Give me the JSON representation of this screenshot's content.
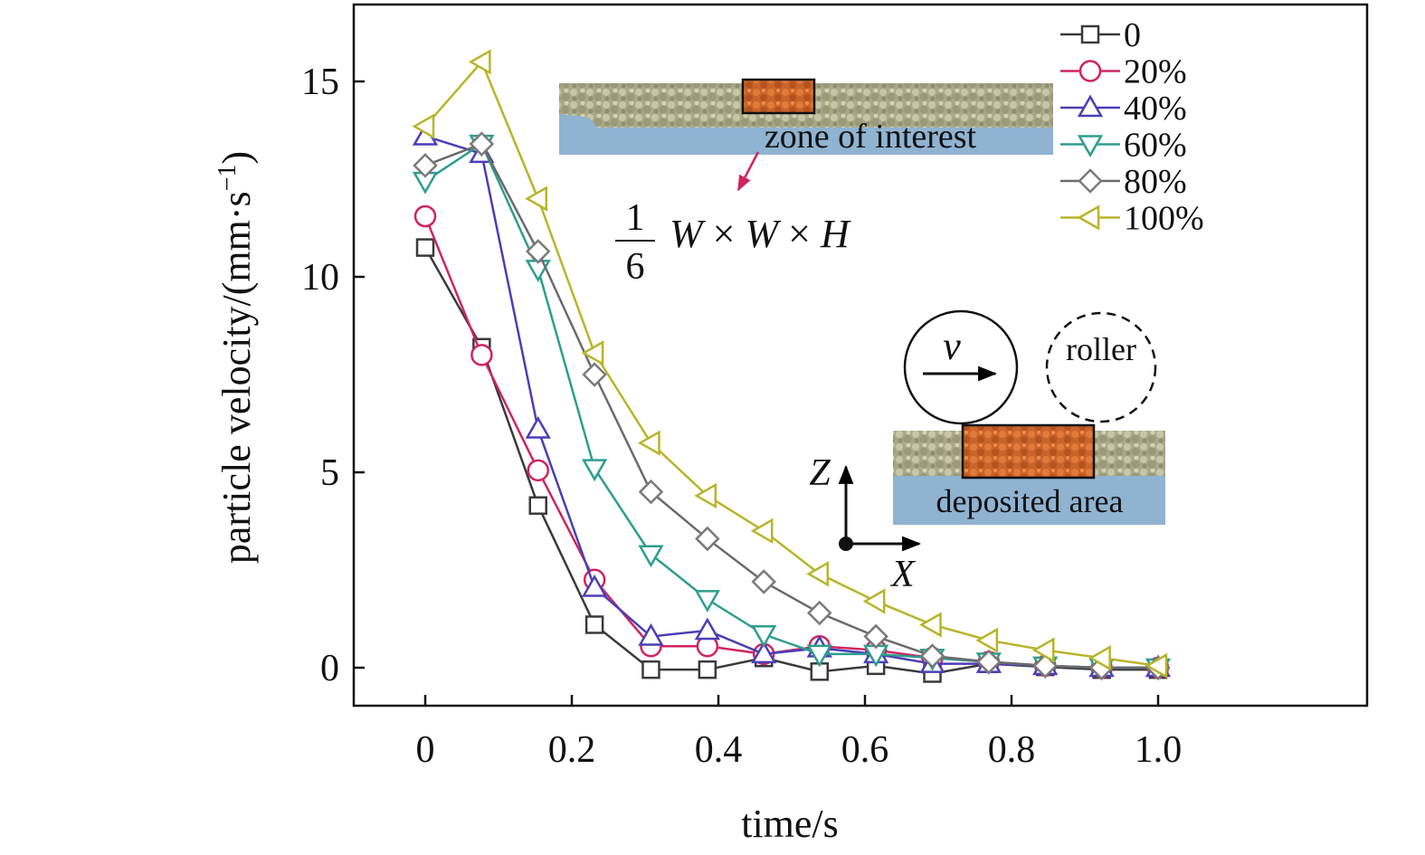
{
  "chart_data": {
    "type": "line",
    "xlabel": "time/s",
    "ylabel_main": "particle velocity/(mm·s",
    "ylabel_sup": "−1",
    "ylabel_close": ")",
    "xlim": [
      -0.1,
      1.05
    ],
    "ylim": [
      -1.0,
      16.8
    ],
    "x_ticks": [
      0,
      0.2,
      0.4,
      0.6,
      0.8,
      1.0
    ],
    "x_tick_labels": [
      "0",
      "0.2",
      "0.4",
      "0.6",
      "0.8",
      "1.0"
    ],
    "y_ticks": [
      0,
      5,
      10,
      15
    ],
    "y_tick_labels": [
      "0",
      "5",
      "10",
      "15"
    ],
    "grid": false,
    "legend_position": "top-right",
    "x": [
      0,
      0.077,
      0.154,
      0.231,
      0.308,
      0.385,
      0.462,
      0.538,
      0.615,
      0.692,
      0.769,
      0.846,
      0.923,
      1.0
    ],
    "series": [
      {
        "name": "0",
        "color": "#3a3a3a",
        "marker": "square",
        "values": [
          10.75,
          8.2,
          4.15,
          1.1,
          -0.05,
          -0.05,
          0.25,
          -0.1,
          0.05,
          -0.15,
          0.1,
          0.02,
          -0.05,
          -0.05
        ]
      },
      {
        "name": "20%",
        "color": "#d0245e",
        "marker": "circle",
        "values": [
          11.55,
          8.0,
          5.05,
          2.25,
          0.55,
          0.55,
          0.35,
          0.55,
          0.45,
          0.25,
          0.15,
          0.05,
          0.0,
          0.0
        ]
      },
      {
        "name": "40%",
        "color": "#4a3fb6",
        "marker": "triangle-up",
        "values": [
          13.6,
          13.15,
          6.1,
          2.05,
          0.8,
          0.95,
          0.35,
          0.5,
          0.35,
          0.1,
          0.1,
          0.05,
          0.0,
          0.0
        ]
      },
      {
        "name": "60%",
        "color": "#2e9e8f",
        "marker": "triangle-down",
        "values": [
          12.45,
          13.4,
          10.2,
          5.1,
          2.9,
          1.75,
          0.85,
          0.35,
          0.35,
          0.25,
          0.15,
          0.05,
          0.0,
          0.0
        ]
      },
      {
        "name": "80%",
        "color": "#7a7a7a",
        "marker": "diamond",
        "line_color": "#6b6b6b",
        "values": [
          12.85,
          13.4,
          10.65,
          7.5,
          4.5,
          3.3,
          2.2,
          1.4,
          0.8,
          0.3,
          0.15,
          0.05,
          0.0,
          0.0
        ]
      },
      {
        "name": "100%",
        "color": "#b9b42a",
        "marker": "triangle-left",
        "values": [
          13.85,
          15.5,
          12.0,
          8.05,
          5.75,
          4.4,
          3.5,
          2.4,
          1.7,
          1.1,
          0.7,
          0.45,
          0.25,
          0.05
        ]
      }
    ],
    "annotations": {
      "zone": "zone of interest",
      "fraction_num": "1",
      "fraction_den": "6",
      "formula_terms": [
        "W",
        " × ",
        "W",
        " × ",
        "H"
      ],
      "velocity_symbol": "v",
      "roller": "roller",
      "deposited": "deposited area",
      "axis_z": "Z",
      "axis_x": "X"
    }
  }
}
